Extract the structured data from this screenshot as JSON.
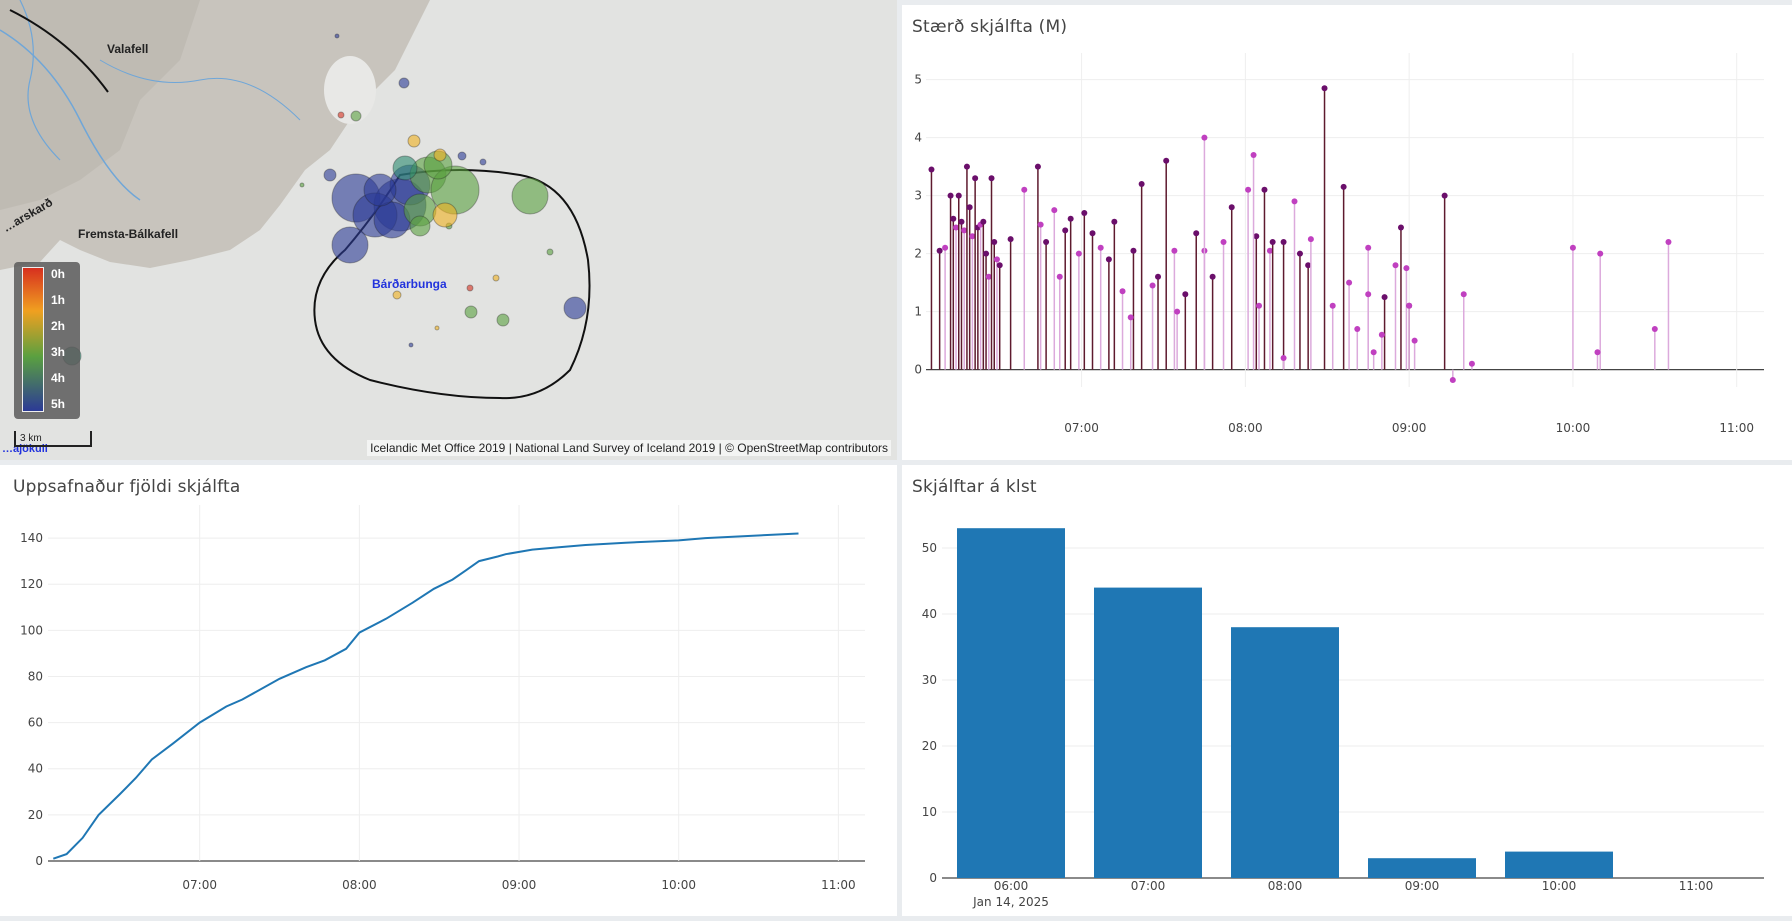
{
  "map": {
    "labels": {
      "valafell": "Valafell",
      "fremsta": "Fremsta-Bálkafell",
      "bardarbunga": "Bárðarbunga",
      "skard": "…arskarð",
      "jokull": "…ajökull"
    },
    "legend": [
      "0h",
      "1h",
      "2h",
      "3h",
      "4h",
      "5h"
    ],
    "scale": "3 km",
    "attribution": "Icelandic Met Office 2019 | National Land Survey of Iceland 2019 | © OpenStreetMap contributors",
    "colors": {
      "h0": "#d7301f",
      "h1": "#f07820",
      "h2": "#f0b020",
      "h3": "#5aa040",
      "h4": "#2c8a70",
      "h5": "#2c3a96"
    }
  },
  "titles": {
    "magnitude": "Stærð skjálfta (M)",
    "cumulative": "Uppsafnaður fjöldi skjálfta",
    "hourly": "Skjálftar á klst"
  },
  "chart_data": [
    {
      "type": "scatter",
      "title": "Stærð skjálfta (M)",
      "x_ticks": [
        "07:00",
        "08:00",
        "09:00",
        "10:00",
        "11:00"
      ],
      "y_ticks": [
        0,
        1,
        2,
        3,
        4,
        5
      ],
      "ylim": [
        -0.3,
        5.2
      ],
      "xlim": [
        "06:03",
        "11:10"
      ],
      "grid": true,
      "colors": {
        "older": "#6b0f6b",
        "recent": "#c040c0",
        "older_stem": "#5e1a2e",
        "recent_stem": "#dcaadc"
      },
      "series": [
        {
          "x": [
            "06:05",
            "06:08",
            "06:10",
            "06:12",
            "06:13",
            "06:14",
            "06:15",
            "06:16",
            "06:17",
            "06:18",
            "06:19",
            "06:20",
            "06:21",
            "06:22",
            "06:23",
            "06:24",
            "06:25",
            "06:26",
            "06:27",
            "06:28",
            "06:29",
            "06:30",
            "06:34",
            "06:39",
            "06:44",
            "06:47",
            "06:50",
            "06:54",
            "06:56",
            "06:59",
            "07:01",
            "07:04",
            "07:07",
            "07:10",
            "07:12",
            "07:15",
            "07:19",
            "07:22",
            "07:26",
            "07:28",
            "07:31",
            "07:34",
            "07:38",
            "07:42",
            "07:45",
            "07:48",
            "07:55",
            "08:01",
            "08:04",
            "08:07",
            "08:09",
            "08:10",
            "08:14",
            "08:18",
            "08:20",
            "08:23",
            "08:24",
            "08:29",
            "08:36",
            "08:45",
            "08:51",
            "08:57",
            "08:59",
            "08:60",
            "08:73",
            "08:80"
          ],
          "y": [
            3.45,
            2.05,
            2.1,
            3.0,
            2.6,
            2.45,
            3.0,
            2.55,
            2.4,
            3.5,
            2.8,
            2.3,
            3.3,
            2.45,
            2.5,
            2.55,
            2.0,
            1.6,
            3.3,
            2.2,
            1.9,
            1.8,
            2.25,
            3.1,
            3.5,
            2.2,
            2.75,
            2.4,
            2.6,
            2.0,
            2.7,
            2.35,
            2.1,
            1.9,
            2.55,
            1.35,
            2.05,
            3.2,
            1.45,
            1.6,
            3.6,
            2.05,
            1.3,
            2.35,
            2.05,
            1.6,
            2.8,
            3.1,
            2.3,
            3.1,
            2.05,
            2.2,
            2.2,
            2.9,
            2.0,
            1.8,
            2.25,
            4.85,
            3.15,
            2.1,
            1.25,
            2.45,
            1.75,
            1.1,
            3.0,
            1.3
          ],
          "name": ""
        }
      ]
    },
    {
      "type": "line",
      "title": "Uppsafnaður fjöldi skjálfta",
      "x_ticks": [
        "07:00",
        "08:00",
        "09:00",
        "10:00",
        "11:00"
      ],
      "y_ticks": [
        0,
        20,
        40,
        60,
        80,
        100,
        120,
        140
      ],
      "ylim": [
        0,
        150
      ],
      "color": "#1f77b4",
      "x": [
        "06:05",
        "06:10",
        "06:16",
        "06:22",
        "06:30",
        "06:36",
        "06:42",
        "06:50",
        "07:00",
        "07:10",
        "07:16",
        "07:30",
        "07:40",
        "07:47",
        "07:55",
        "08:00",
        "08:10",
        "08:20",
        "08:28",
        "08:35",
        "08:40",
        "08:45",
        "08:52",
        "08:55",
        "09:05",
        "09:15",
        "09:25",
        "09:40",
        "10:00",
        "10:10",
        "10:45"
      ],
      "y": [
        1,
        3,
        10,
        20,
        29,
        36,
        44,
        51,
        60,
        67,
        70,
        79,
        84,
        87,
        92,
        99,
        105,
        112,
        118,
        122,
        126,
        130,
        132,
        133,
        135,
        136,
        137,
        138,
        139,
        140,
        142
      ]
    },
    {
      "type": "bar",
      "title": "Skjálftar á klst",
      "categories": [
        "06:00",
        "07:00",
        "08:00",
        "09:00",
        "10:00",
        "11:00"
      ],
      "date_label": "Jan 14, 2025",
      "values": [
        53,
        44,
        38,
        3,
        4,
        0
      ],
      "y_ticks": [
        0,
        10,
        20,
        30,
        40,
        50
      ],
      "ylim": [
        0,
        55
      ],
      "color": "#1f77b4"
    }
  ]
}
